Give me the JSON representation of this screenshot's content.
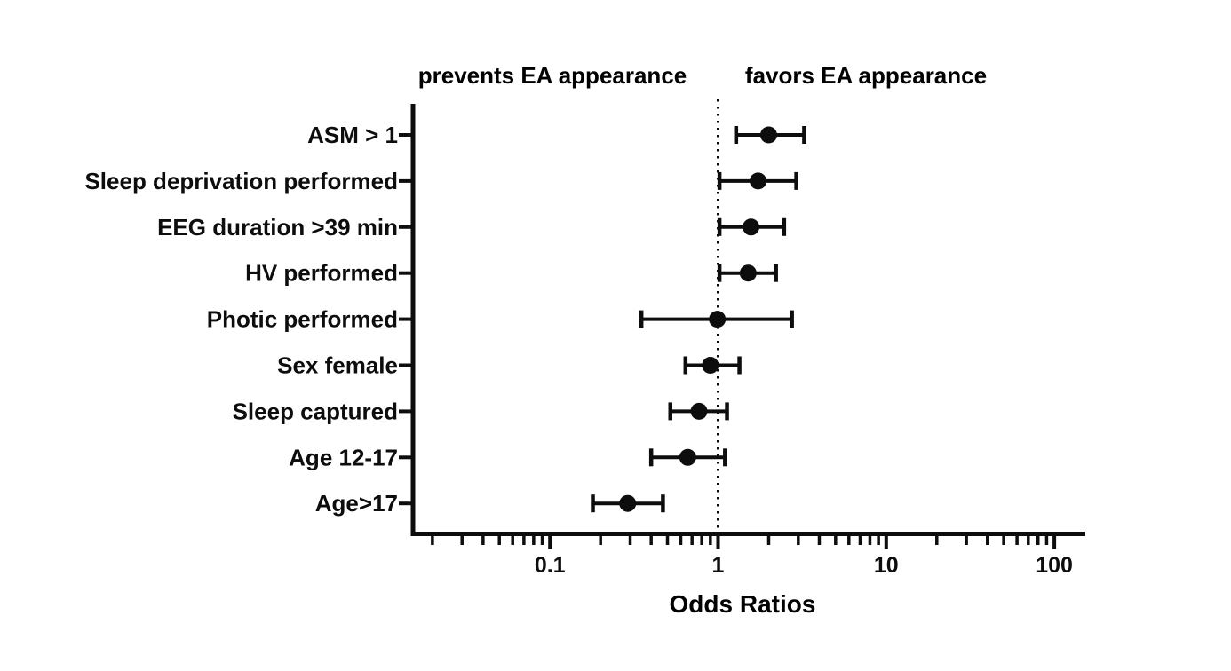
{
  "figure": {
    "background": "#ffffff",
    "ink_color": "#0d0d0d"
  },
  "chart_data": {
    "type": "scatter",
    "subtype": "forest-plot",
    "orientation": "horizontal",
    "title_left": "prevents EA appearance",
    "title_right": "favors EA appearance",
    "xlabel": "Odds Ratios",
    "ylabel": "",
    "x_scale": "log10",
    "x_range": [
      0.015,
      150
    ],
    "x_ticks_major": [
      0.1,
      1,
      10,
      100
    ],
    "x_tick_labels": [
      "0.1",
      "1",
      "10",
      "100"
    ],
    "reference_line": 1,
    "grid": "off",
    "legend": "none",
    "marker": "filled-circle",
    "error_bars": "capped-horizontal-ci",
    "rows": [
      {
        "label": "ASM > 1",
        "or": 2.0,
        "ci_low": 1.28,
        "ci_high": 3.25
      },
      {
        "label": "Sleep deprivation performed",
        "or": 1.73,
        "ci_low": 1.02,
        "ci_high": 2.92
      },
      {
        "label": "EEG duration >39 min",
        "or": 1.57,
        "ci_low": 1.02,
        "ci_high": 2.47
      },
      {
        "label": "HV performed",
        "or": 1.51,
        "ci_low": 1.02,
        "ci_high": 2.21
      },
      {
        "label": "Photic performed",
        "or": 0.99,
        "ci_low": 0.35,
        "ci_high": 2.75
      },
      {
        "label": "Sex female",
        "or": 0.9,
        "ci_low": 0.64,
        "ci_high": 1.34
      },
      {
        "label": "Sleep captured",
        "or": 0.77,
        "ci_low": 0.52,
        "ci_high": 1.13
      },
      {
        "label": "Age 12-17",
        "or": 0.66,
        "ci_low": 0.4,
        "ci_high": 1.1
      },
      {
        "label": "Age>17",
        "or": 0.29,
        "ci_low": 0.18,
        "ci_high": 0.47
      }
    ]
  }
}
